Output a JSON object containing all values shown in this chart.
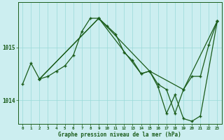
{
  "title": "Graphe pression niveau de la mer (hPa)",
  "bg_color": "#cceef0",
  "line_color": "#1a5c1a",
  "grid_color": "#99d9d9",
  "axis_color": "#1a5c1a",
  "ylabel_ticks": [
    1014,
    1015
  ],
  "xlim_min": -0.5,
  "xlim_max": 23.5,
  "ylim_min": 1013.55,
  "ylim_max": 1015.85,
  "series1": [
    [
      0,
      1014.3
    ],
    [
      1,
      1014.7
    ],
    [
      2,
      1014.4
    ],
    [
      3,
      1014.45
    ],
    [
      4,
      1014.55
    ],
    [
      5,
      1014.65
    ],
    [
      6,
      1014.85
    ],
    [
      7,
      1015.3
    ],
    [
      8,
      1015.55
    ],
    [
      9,
      1015.55
    ],
    [
      10,
      1015.4
    ],
    [
      11,
      1015.25
    ],
    [
      12,
      1014.9
    ],
    [
      13,
      1014.75
    ],
    [
      14,
      1014.5
    ],
    [
      15,
      1014.55
    ],
    [
      16,
      1014.3
    ],
    [
      17,
      1014.2
    ],
    [
      18,
      1013.75
    ],
    [
      19,
      1014.2
    ],
    [
      20,
      1014.45
    ],
    [
      21,
      1014.45
    ],
    [
      22,
      1015.05
    ],
    [
      23,
      1015.5
    ]
  ],
  "series2": [
    [
      2,
      1014.4
    ],
    [
      9,
      1015.55
    ],
    [
      14,
      1014.5
    ],
    [
      15,
      1014.55
    ],
    [
      19,
      1014.2
    ],
    [
      23,
      1015.5
    ]
  ],
  "series3": [
    [
      2,
      1014.4
    ],
    [
      9,
      1015.55
    ],
    [
      15,
      1014.55
    ],
    [
      16,
      1014.25
    ],
    [
      17,
      1013.75
    ],
    [
      18,
      1014.1
    ],
    [
      19,
      1013.65
    ],
    [
      20,
      1013.6
    ],
    [
      21,
      1013.7
    ],
    [
      23,
      1015.5
    ]
  ],
  "xtick_labels": [
    "0",
    "1",
    "2",
    "3",
    "4",
    "5",
    "6",
    "7",
    "8",
    "9",
    "10",
    "11",
    "12",
    "13",
    "14",
    "15",
    "16",
    "17",
    "18",
    "19",
    "20",
    "21",
    "22",
    "23"
  ]
}
